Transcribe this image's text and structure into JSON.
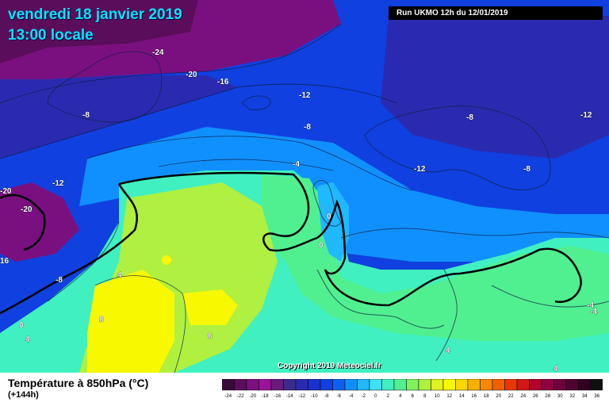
{
  "header": {
    "date": "vendredi 18 janvier 2019",
    "time": "13:00 locale",
    "run": "Run UKMO 12h du 12/01/2019"
  },
  "copyright": "Copyright 2019 Meteociel.fr",
  "legend": {
    "title": "Température à 850hPa (°C)",
    "subtitle": "(+144h)",
    "ticks": [
      "-24",
      "-22",
      "-20",
      "-18",
      "-16",
      "-14",
      "-12",
      "-10",
      "-8",
      "-6",
      "-4",
      "-2",
      "0",
      "2",
      "4",
      "6",
      "8",
      "10",
      "12",
      "14",
      "16",
      "18",
      "20",
      "22",
      "24",
      "26",
      "28",
      "30",
      "32",
      "34",
      "36"
    ],
    "colors": [
      "#3a0a3a",
      "#5a0d5a",
      "#7a1080",
      "#9a139a",
      "#6a1a7a",
      "#3a2a8a",
      "#2a2ab0",
      "#1a30d0",
      "#1040e0",
      "#1060f0",
      "#1090ff",
      "#20b8ff",
      "#40e0f0",
      "#40f0c0",
      "#50f090",
      "#80f060",
      "#b0f040",
      "#e0f020",
      "#f8f800",
      "#f8d800",
      "#f8b000",
      "#f88800",
      "#f06000",
      "#e83800",
      "#d01818",
      "#b00030",
      "#900040",
      "#700040",
      "#500030",
      "#300020",
      "#101010"
    ]
  },
  "isotherm_labels": [
    "-24",
    "-20",
    "-16",
    "-12",
    "-8",
    "-8",
    "-12",
    "-8",
    "-12",
    "-4",
    "-12",
    "-8",
    "-20",
    "-20",
    "16",
    "-8",
    "4",
    "8",
    "0",
    "4",
    "8",
    "0",
    "0",
    "-4",
    "-4",
    "4",
    "4"
  ],
  "icons": {
    "map": "weather-map"
  }
}
